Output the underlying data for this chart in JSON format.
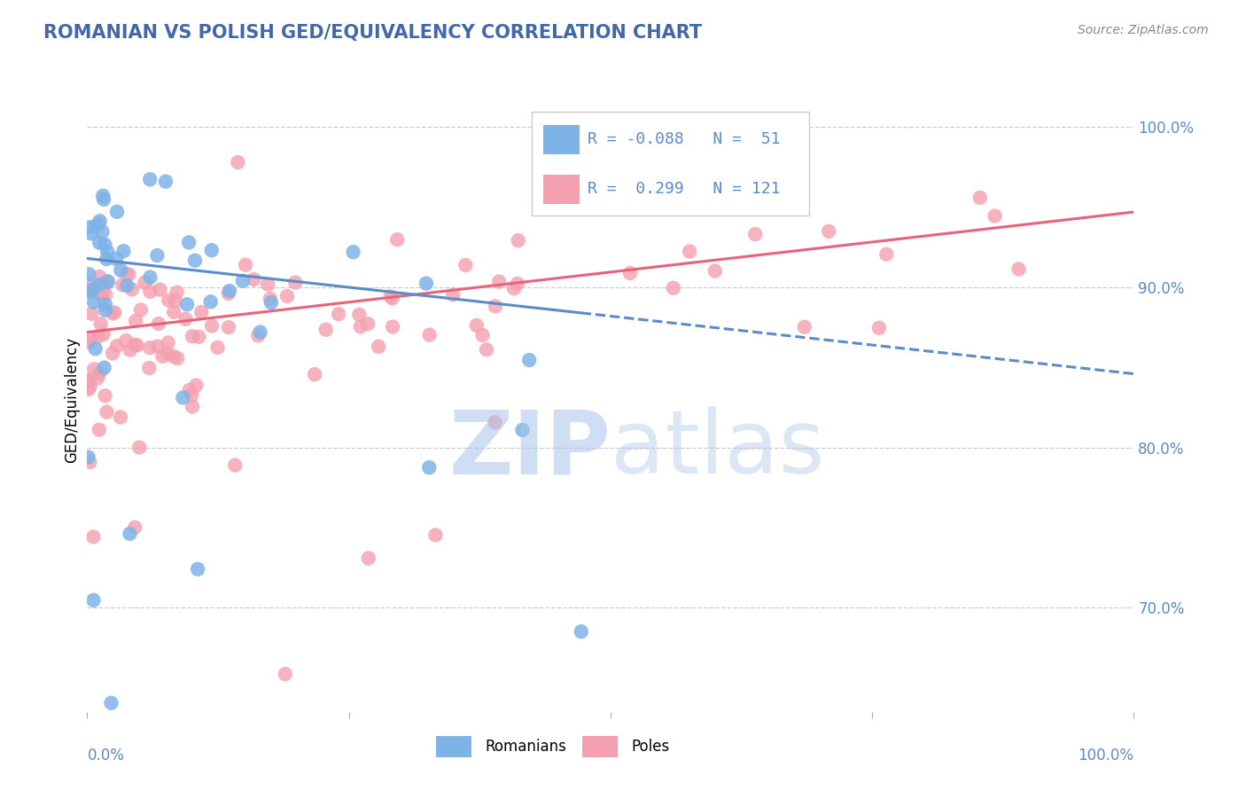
{
  "title": "ROMANIAN VS POLISH GED/EQUIVALENCY CORRELATION CHART",
  "source": "Source: ZipAtlas.com",
  "ylabel": "GED/Equivalency",
  "y_tick_values": [
    0.7,
    0.8,
    0.9,
    1.0
  ],
  "legend_romanian": "Romanians",
  "legend_poles": "Poles",
  "r_romanian": -0.088,
  "n_romanian": 51,
  "r_poles": 0.299,
  "n_poles": 121,
  "color_romanian": "#7EB3E8",
  "color_poles": "#F4A0B0",
  "color_line_romanian": "#5A8DC8",
  "color_line_poles": "#E8637A",
  "color_title": "#4169AA",
  "color_axis": "#5A8ACC",
  "color_watermark": "#C8D8F0",
  "background": "#FFFFFF",
  "grid_color": "#CCCCCC",
  "xlim": [
    0.0,
    1.0
  ],
  "ylim": [
    0.635,
    1.025
  ],
  "rom_intercept": 0.918,
  "rom_slope": -0.072,
  "pol_intercept": 0.872,
  "pol_slope": 0.075
}
